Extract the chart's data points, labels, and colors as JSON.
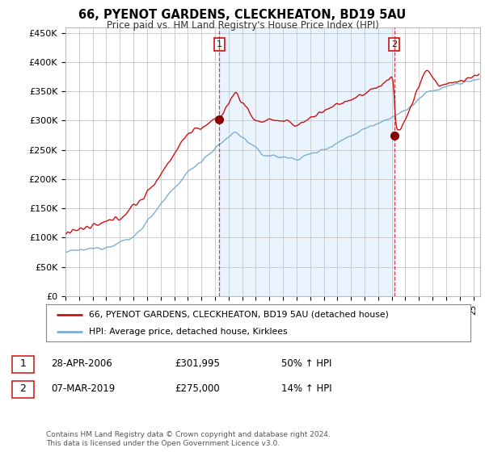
{
  "title": "66, PYENOT GARDENS, CLECKHEATON, BD19 5AU",
  "subtitle": "Price paid vs. HM Land Registry's House Price Index (HPI)",
  "ylim": [
    0,
    460000
  ],
  "yticks": [
    0,
    50000,
    100000,
    150000,
    200000,
    250000,
    300000,
    350000,
    400000,
    450000
  ],
  "ytick_labels": [
    "£0",
    "£50K",
    "£100K",
    "£150K",
    "£200K",
    "£250K",
    "£300K",
    "£350K",
    "£400K",
    "£450K"
  ],
  "hpi_color": "#7bafd4",
  "price_color": "#cc1111",
  "shade_color": "#ddeeff",
  "marker1_year": 2006.32,
  "marker1_price": 301995,
  "marker1_label": "28-APR-2006",
  "marker1_value": "£301,995",
  "marker1_pct": "50% ↑ HPI",
  "marker2_year": 2019.18,
  "marker2_price": 275000,
  "marker2_label": "07-MAR-2019",
  "marker2_value": "£275,000",
  "marker2_pct": "14% ↑ HPI",
  "legend_line1": "66, PYENOT GARDENS, CLECKHEATON, BD19 5AU (detached house)",
  "legend_line2": "HPI: Average price, detached house, Kirklees",
  "footer": "Contains HM Land Registry data © Crown copyright and database right 2024.\nThis data is licensed under the Open Government Licence v3.0.",
  "background_color": "#ffffff",
  "grid_color": "#cccccc"
}
